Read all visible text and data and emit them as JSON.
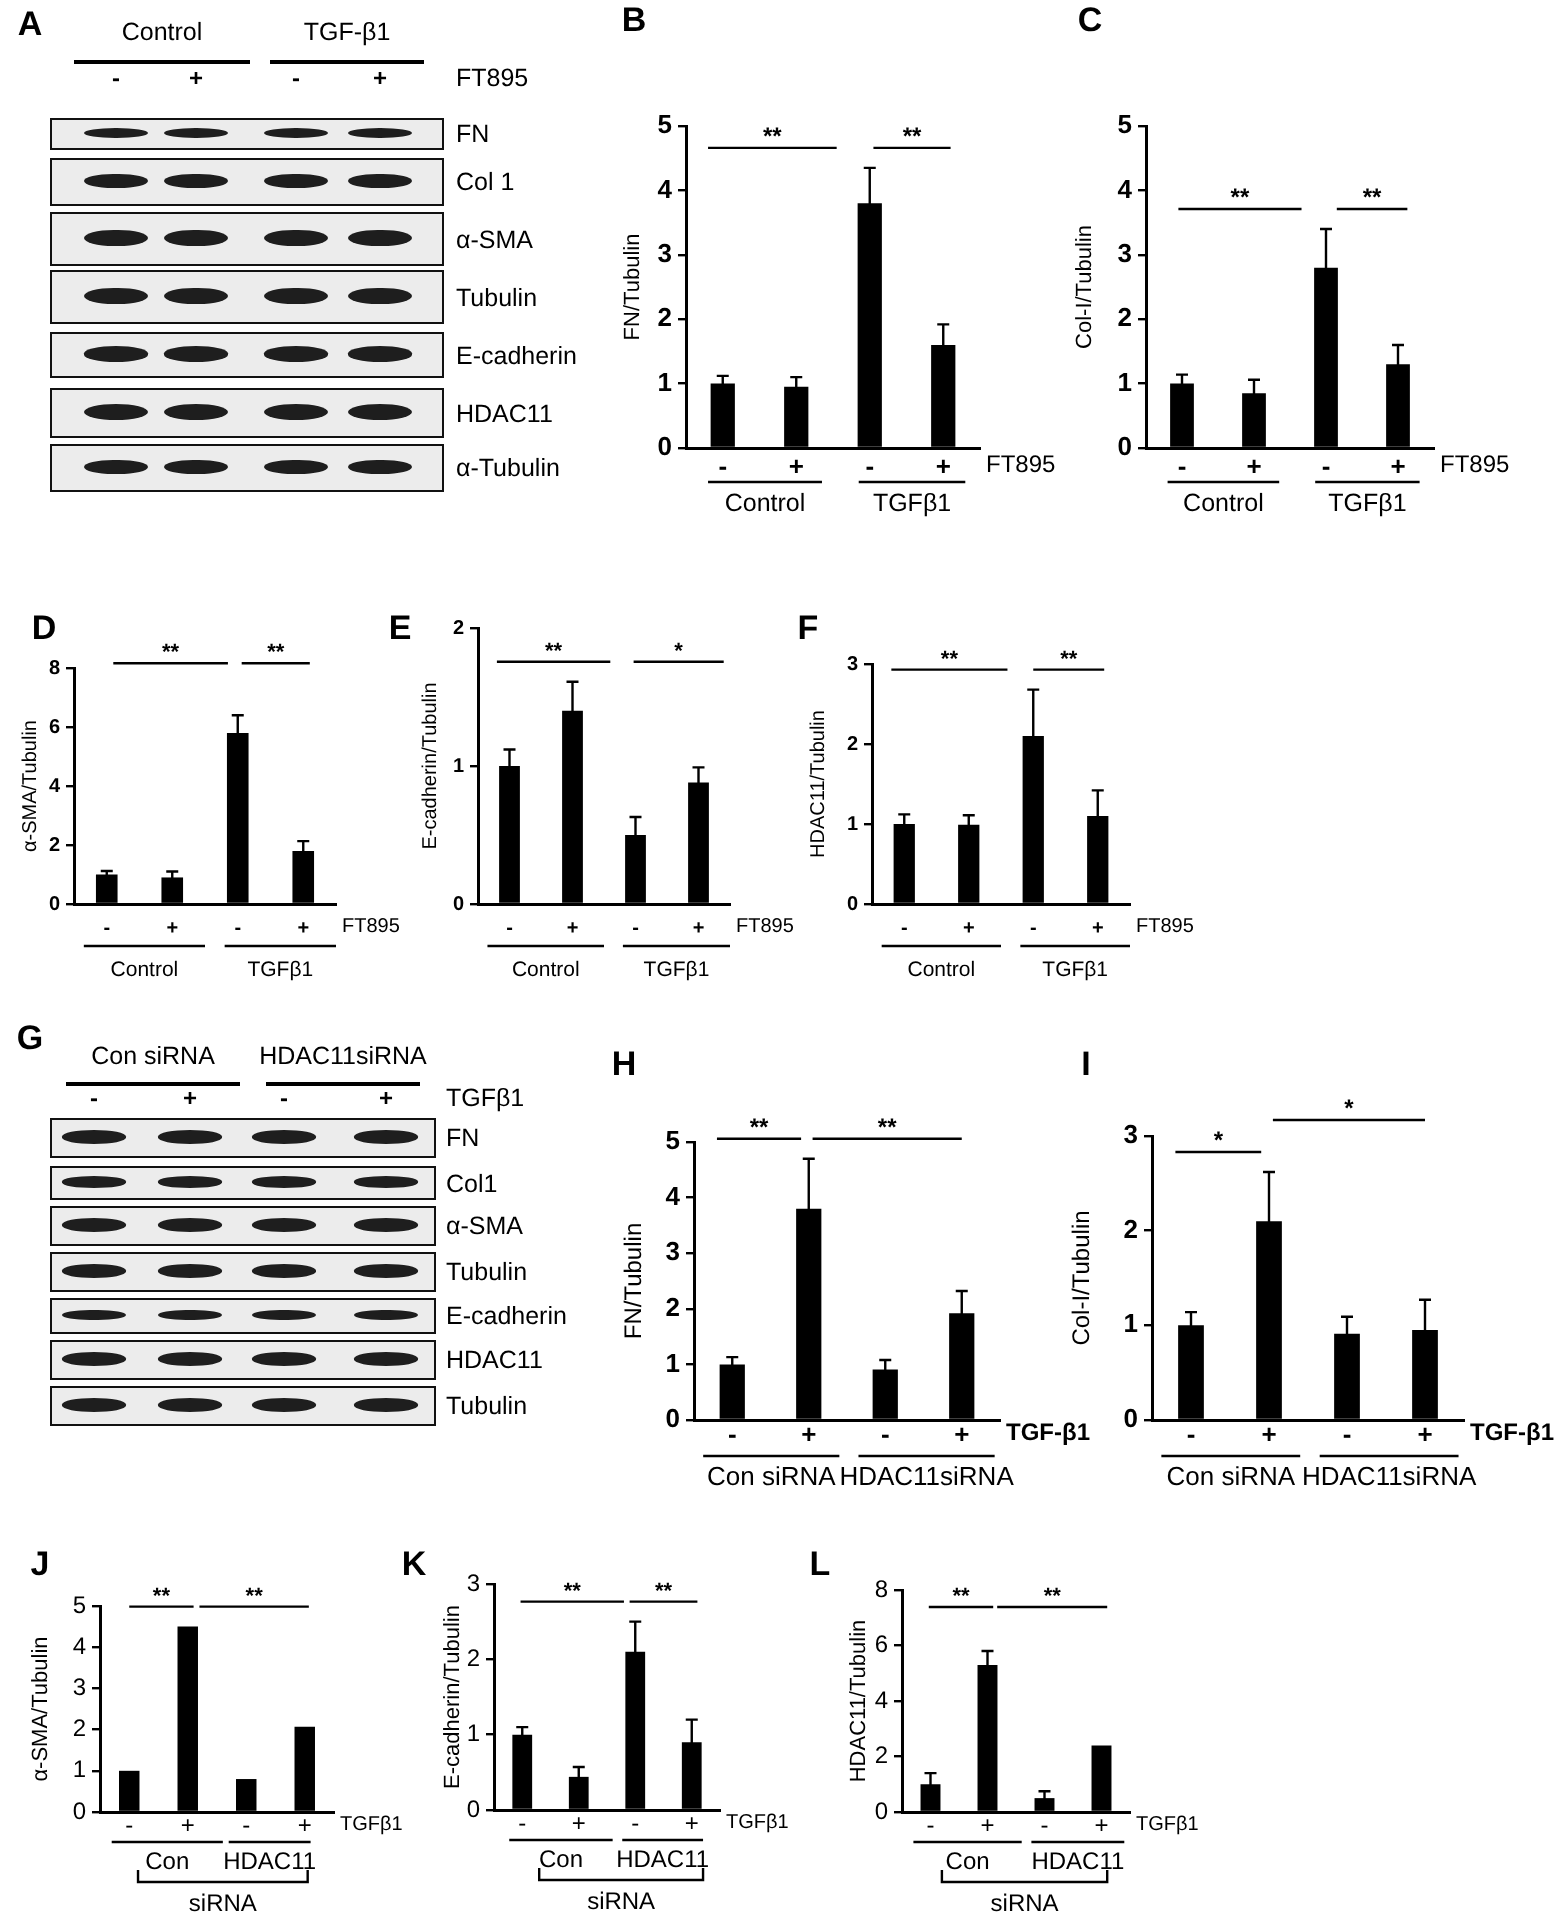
{
  "chart_data": [
    {
      "type": "other",
      "title": "A",
      "categories": [
        "-",
        "+",
        "-",
        "+"
      ],
      "xlabel": "FT895",
      "annotations": [
        "Control",
        "TGF-β1"
      ],
      "y_categories": [
        "FN",
        "Col 1",
        "α-SMA",
        "Tubulin",
        "E-cadherin",
        "HDAC11",
        "α-Tubulin"
      ]
    },
    {
      "type": "bar",
      "title": "B",
      "ylabel": "FN/Tubulin",
      "xlabel": "FT895",
      "categories": [
        "-",
        "+",
        "-",
        "+"
      ],
      "values": [
        1.0,
        0.95,
        3.8,
        1.6
      ],
      "errors": [
        0.12,
        0.15,
        0.55,
        0.32
      ],
      "color": "#000000",
      "ylim": [
        0,
        5
      ],
      "yticks": [
        0,
        1,
        2,
        3,
        4,
        5
      ],
      "annotations": [
        "**",
        "**",
        "Control",
        "TGFβ1"
      ]
    },
    {
      "type": "bar",
      "title": "C",
      "ylabel": "Col-I/Tubulin",
      "xlabel": "FT895",
      "categories": [
        "-",
        "+",
        "-",
        "+"
      ],
      "values": [
        1.0,
        0.85,
        2.8,
        1.3
      ],
      "errors": [
        0.14,
        0.21,
        0.6,
        0.3
      ],
      "color": "#000000",
      "ylim": [
        0,
        5
      ],
      "yticks": [
        0,
        1,
        2,
        3,
        4,
        5
      ],
      "annotations": [
        "**",
        "**",
        "Control",
        "TGFβ1"
      ]
    },
    {
      "type": "bar",
      "title": "D",
      "ylabel": "α-SMA/Tubulin",
      "xlabel": "FT895",
      "categories": [
        "-",
        "+",
        "-",
        "+"
      ],
      "values": [
        1.0,
        0.9,
        5.8,
        1.8
      ],
      "errors": [
        0.12,
        0.2,
        0.6,
        0.33
      ],
      "color": "#000000",
      "ylim": [
        0,
        8
      ],
      "yticks": [
        0,
        2,
        4,
        6,
        8
      ],
      "annotations": [
        "**",
        "**",
        "Control",
        "TGFβ1"
      ]
    },
    {
      "type": "bar",
      "title": "E",
      "ylabel": "E-cadherin/Tubulin",
      "xlabel": "FT895",
      "categories": [
        "-",
        "+",
        "-",
        "+"
      ],
      "values": [
        1.0,
        1.4,
        0.5,
        0.88
      ],
      "errors": [
        0.12,
        0.21,
        0.13,
        0.11
      ],
      "color": "#000000",
      "ylim": [
        0,
        2
      ],
      "yticks": [
        0,
        1,
        2
      ],
      "annotations": [
        "**",
        "*",
        "Control",
        "TGFβ1"
      ]
    },
    {
      "type": "bar",
      "title": "F",
      "ylabel": "HDAC11/Tubulin",
      "xlabel": "FT895",
      "categories": [
        "-",
        "+",
        "-",
        "+"
      ],
      "values": [
        1.0,
        0.99,
        2.1,
        1.1
      ],
      "errors": [
        0.12,
        0.12,
        0.58,
        0.32
      ],
      "color": "#000000",
      "ylim": [
        0,
        3
      ],
      "yticks": [
        0,
        1,
        2,
        3
      ],
      "annotations": [
        "**",
        "**",
        "Control",
        "TGFβ1"
      ]
    },
    {
      "type": "other",
      "title": "G",
      "categories": [
        "-",
        "+",
        "-",
        "+"
      ],
      "xlabel": "TGFβ1",
      "annotations": [
        "Con siRNA",
        "HDAC11siRNA"
      ],
      "y_categories": [
        "FN",
        "Col1",
        "α-SMA",
        "Tubulin",
        "E-cadherin",
        "HDAC11",
        "Tubulin"
      ]
    },
    {
      "type": "bar",
      "title": "H",
      "ylabel": "FN/Tubulin",
      "xlabel": "TGF-β1",
      "categories": [
        "-",
        "+",
        "-",
        "+"
      ],
      "values": [
        1.0,
        3.8,
        0.91,
        1.92
      ],
      "errors": [
        0.13,
        0.9,
        0.17,
        0.4
      ],
      "color": "#000000",
      "ylim": [
        0,
        5
      ],
      "yticks": [
        0,
        1,
        2,
        3,
        4,
        5
      ],
      "annotations": [
        "**",
        "**",
        "Con siRNA",
        "HDAC11siRNA"
      ]
    },
    {
      "type": "bar",
      "title": "I",
      "ylabel": "Col-I/Tubulin",
      "xlabel": "TGF-β1",
      "categories": [
        "-",
        "+",
        "-",
        "+"
      ],
      "values": [
        1.0,
        2.1,
        0.91,
        0.95
      ],
      "errors": [
        0.14,
        0.52,
        0.18,
        0.32
      ],
      "color": "#000000",
      "ylim": [
        0,
        3
      ],
      "yticks": [
        0,
        1,
        2,
        3
      ],
      "annotations": [
        "*",
        "*",
        "Con siRNA",
        "HDAC11siRNA"
      ]
    },
    {
      "type": "bar",
      "title": "J",
      "ylabel": "α-SMA/Tubulin",
      "xlabel": "TGFβ1",
      "categories": [
        "-",
        "+",
        "-",
        "+"
      ],
      "values": [
        1.0,
        4.5,
        0.8,
        2.07
      ],
      "color": "#000000",
      "ylim": [
        0,
        5
      ],
      "yticks": [
        0,
        1,
        2,
        3,
        4,
        5
      ],
      "annotations": [
        "**",
        "**",
        "Con",
        "HDAC11",
        "siRNA"
      ]
    },
    {
      "type": "bar",
      "title": "K",
      "ylabel": "E-cadherin/Tubulin",
      "xlabel": "TGFβ1",
      "categories": [
        "-",
        "+",
        "-",
        "+"
      ],
      "values": [
        1.0,
        0.44,
        2.1,
        0.9
      ],
      "errors": [
        0.1,
        0.13,
        0.4,
        0.3
      ],
      "color": "#000000",
      "ylim": [
        0,
        3
      ],
      "yticks": [
        0,
        1,
        2,
        3
      ],
      "annotations": [
        "**",
        "**",
        "Con",
        "HDAC11",
        "siRNA"
      ]
    },
    {
      "type": "bar",
      "title": "L",
      "ylabel": "HDAC11/Tubulin",
      "xlabel": "TGFβ1",
      "categories": [
        "-",
        "+",
        "-",
        "+"
      ],
      "values": [
        1.0,
        5.3,
        0.5,
        2.4
      ],
      "errors": [
        0.4,
        0.5,
        0.25,
        null
      ],
      "color": "#000000",
      "ylim": [
        0,
        8
      ],
      "yticks": [
        0,
        2,
        4,
        6,
        8
      ],
      "annotations": [
        "**",
        "**",
        "Con",
        "HDAC11",
        "siRNA"
      ]
    }
  ]
}
